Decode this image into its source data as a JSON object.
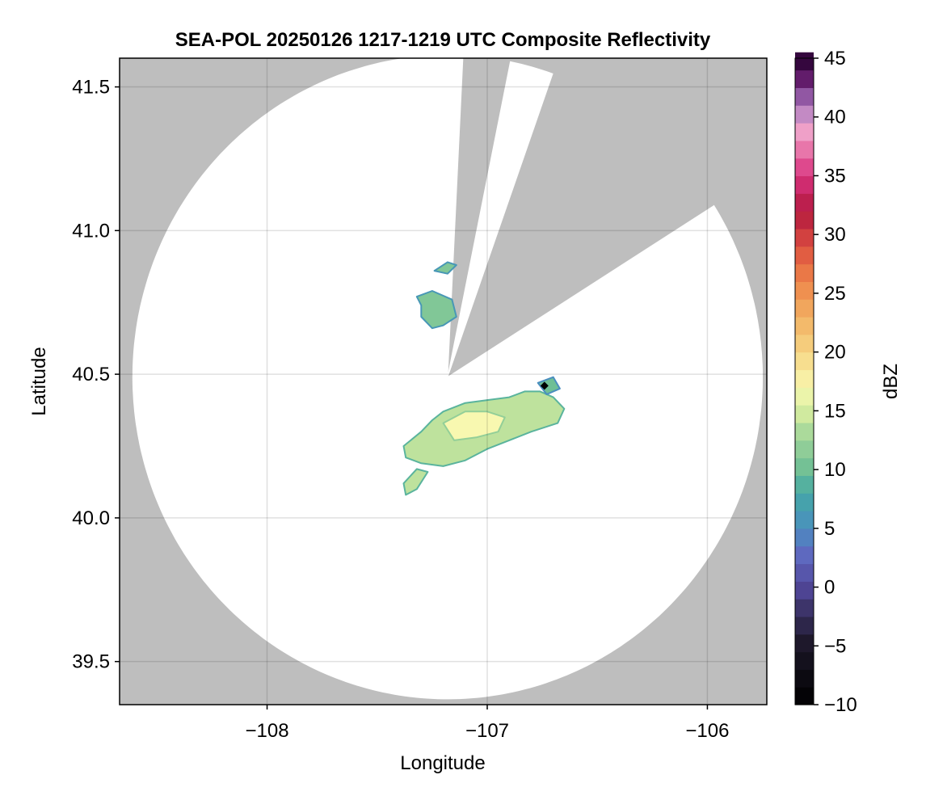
{
  "chart_data": {
    "type": "heatmap",
    "title": "SEA-POL 20250126 1217-1219 UTC Composite Reflectivity",
    "xlabel": "Longitude",
    "ylabel": "Latitude",
    "xlim": [
      -108.67,
      -105.73
    ],
    "ylim": [
      39.35,
      41.6
    ],
    "x_ticks": [
      {
        "value": -108,
        "label": "−108"
      },
      {
        "value": -107,
        "label": "−107"
      },
      {
        "value": -106,
        "label": "−106"
      }
    ],
    "y_ticks": [
      {
        "value": 39.5,
        "label": "39.5"
      },
      {
        "value": 40.0,
        "label": "40.0"
      },
      {
        "value": 40.5,
        "label": "40.5"
      },
      {
        "value": 41.0,
        "label": "41.0"
      },
      {
        "value": 41.5,
        "label": "41.5"
      }
    ],
    "grid": true,
    "background_color": "#bebebe",
    "radar": {
      "center_lon": -107.18,
      "center_lat": 40.49,
      "range_lat_deg": 1.12,
      "range_lon_deg": 1.43,
      "blocked_sectors_deg": [
        [
          3.5,
          11.5
        ],
        [
          20.3,
          57.8
        ]
      ]
    },
    "reflectivity_regions": [
      {
        "name": "main band",
        "polygon": [
          [
            -107.38,
            40.25
          ],
          [
            -107.3,
            40.3
          ],
          [
            -107.25,
            40.34
          ],
          [
            -107.2,
            40.37
          ],
          [
            -107.1,
            40.4
          ],
          [
            -107.0,
            40.41
          ],
          [
            -106.9,
            40.42
          ],
          [
            -106.83,
            40.44
          ],
          [
            -106.76,
            40.44
          ],
          [
            -106.7,
            40.42
          ],
          [
            -106.65,
            40.38
          ],
          [
            -106.68,
            40.33
          ],
          [
            -106.8,
            40.3
          ],
          [
            -106.9,
            40.27
          ],
          [
            -107.0,
            40.24
          ],
          [
            -107.1,
            40.2
          ],
          [
            -107.2,
            40.18
          ],
          [
            -107.3,
            40.19
          ],
          [
            -107.37,
            40.21
          ]
        ],
        "dbz": 14
      },
      {
        "name": "core",
        "polygon": [
          [
            -107.2,
            40.33
          ],
          [
            -107.1,
            40.37
          ],
          [
            -107.0,
            40.37
          ],
          [
            -106.92,
            40.35
          ],
          [
            -106.95,
            40.3
          ],
          [
            -107.05,
            40.28
          ],
          [
            -107.15,
            40.27
          ]
        ],
        "dbz": 17
      },
      {
        "name": "southwest fragment",
        "polygon": [
          [
            -107.32,
            40.17
          ],
          [
            -107.27,
            40.16
          ],
          [
            -107.32,
            40.1
          ],
          [
            -107.37,
            40.08
          ],
          [
            -107.38,
            40.12
          ]
        ],
        "dbz": 14
      },
      {
        "name": "northwest cluster",
        "polygon": [
          [
            -107.32,
            40.77
          ],
          [
            -107.25,
            40.79
          ],
          [
            -107.16,
            40.76
          ],
          [
            -107.14,
            40.7
          ],
          [
            -107.2,
            40.67
          ],
          [
            -107.25,
            40.66
          ],
          [
            -107.3,
            40.7
          ],
          [
            -107.3,
            40.74
          ]
        ],
        "dbz": 11
      },
      {
        "name": "northern fragment",
        "polygon": [
          [
            -107.24,
            40.86
          ],
          [
            -107.18,
            40.89
          ],
          [
            -107.14,
            40.88
          ],
          [
            -107.18,
            40.85
          ]
        ],
        "dbz": 11
      },
      {
        "name": "northeast echo",
        "polygon": [
          [
            -106.77,
            40.47
          ],
          [
            -106.7,
            40.49
          ],
          [
            -106.67,
            40.45
          ],
          [
            -106.73,
            40.43
          ]
        ],
        "dbz": 10
      }
    ],
    "marker": {
      "lon": -106.74,
      "lat": 40.46,
      "shape": "diamond",
      "color": "#000000"
    },
    "colorbar": {
      "label": "dBZ",
      "min": -10,
      "max": 45,
      "step": 1.5,
      "ticks": [
        -10,
        -5,
        0,
        5,
        10,
        15,
        20,
        25,
        30,
        35,
        40,
        45
      ],
      "tick_labels": [
        "−10",
        "−5",
        "0",
        "5",
        "10",
        "15",
        "20",
        "25",
        "30",
        "35",
        "40",
        "45"
      ],
      "colormap_stops": [
        {
          "value": -10,
          "color": "#000000"
        },
        {
          "value": -5,
          "color": "#1b1626"
        },
        {
          "value": -2,
          "color": "#3a3163"
        },
        {
          "value": 0,
          "color": "#51479a"
        },
        {
          "value": 3,
          "color": "#5f6cc2"
        },
        {
          "value": 5,
          "color": "#4a8ebf"
        },
        {
          "value": 8,
          "color": "#45a8a5"
        },
        {
          "value": 10,
          "color": "#6fbf95"
        },
        {
          "value": 13,
          "color": "#a5d79a"
        },
        {
          "value": 15,
          "color": "#d6eda0"
        },
        {
          "value": 17,
          "color": "#f8f8b0"
        },
        {
          "value": 20,
          "color": "#f6d584"
        },
        {
          "value": 23,
          "color": "#f2b163"
        },
        {
          "value": 26,
          "color": "#ee8549"
        },
        {
          "value": 29,
          "color": "#dc4f40"
        },
        {
          "value": 32,
          "color": "#b2183e"
        },
        {
          "value": 35,
          "color": "#d8327f"
        },
        {
          "value": 37,
          "color": "#e76fa5"
        },
        {
          "value": 39,
          "color": "#f0a7cd"
        },
        {
          "value": 41,
          "color": "#a878bf"
        },
        {
          "value": 43,
          "color": "#6a1f73"
        },
        {
          "value": 45,
          "color": "#2d0436"
        }
      ]
    }
  }
}
